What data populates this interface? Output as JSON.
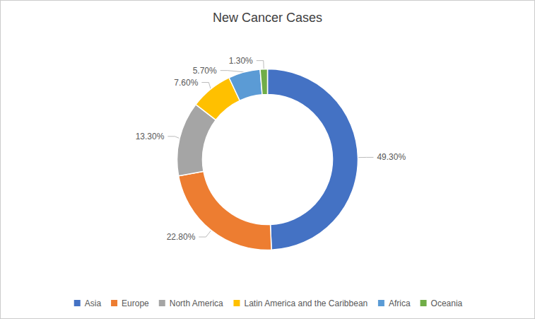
{
  "chart_data": {
    "type": "pie",
    "title": "New Cancer Cases",
    "categories": [
      "Asia",
      "Europe",
      "North America",
      "Latin America and the Caribbean",
      "Africa",
      "Oceania"
    ],
    "values": [
      49.3,
      22.8,
      13.3,
      7.6,
      5.7,
      1.3
    ],
    "value_labels": [
      "49.30%",
      "22.80%",
      "13.30%",
      "7.60%",
      "5.70%",
      "1.30%"
    ],
    "colors": [
      "#4472C4",
      "#ED7D31",
      "#A5A5A5",
      "#FFC000",
      "#5B9BD5",
      "#70AD47"
    ],
    "data_labels": true,
    "legend": "bottom"
  }
}
